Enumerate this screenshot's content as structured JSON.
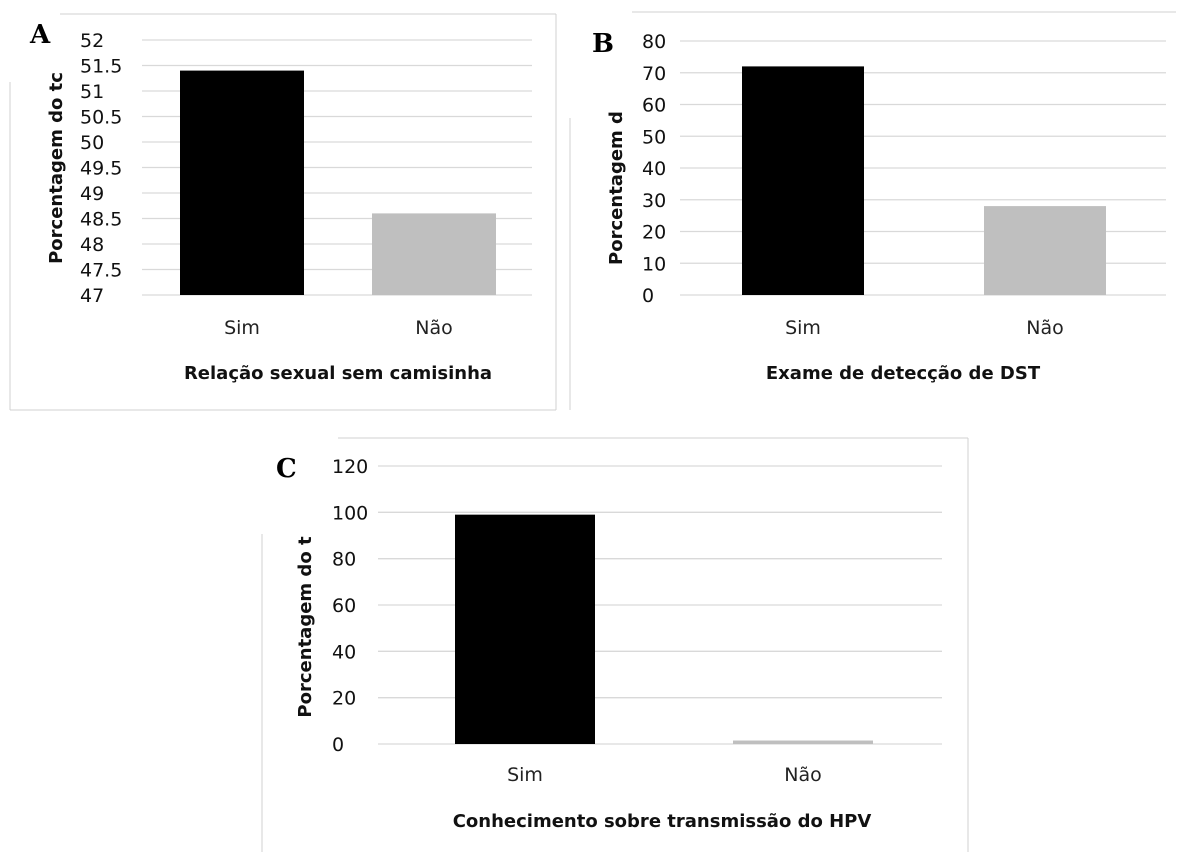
{
  "colors": {
    "sim": "#000000",
    "nao": "#bfbfbf",
    "grid": "#d9d9d9"
  },
  "chart_data": [
    {
      "panel_label": "A",
      "type": "bar",
      "categories": [
        "Sim",
        "Não"
      ],
      "values": [
        51.4,
        48.6
      ],
      "ylim": [
        47,
        52
      ],
      "yticks": [
        "47",
        "47.5",
        "48",
        "48.5",
        "49",
        "49.5",
        "50",
        "50.5",
        "51",
        "51.5",
        "52"
      ],
      "xlabel": "Relação sexual sem camisinha",
      "ylabel": "Porcentagem do tc",
      "grid": true
    },
    {
      "panel_label": "B",
      "type": "bar",
      "categories": [
        "Sim",
        "Não"
      ],
      "values": [
        72,
        28
      ],
      "ylim": [
        0,
        80
      ],
      "yticks": [
        "0",
        "10",
        "20",
        "30",
        "40",
        "50",
        "60",
        "70",
        "80"
      ],
      "xlabel": "Exame de detecção de DST",
      "ylabel": "Porcentagem d",
      "grid": true
    },
    {
      "panel_label": "C",
      "type": "bar",
      "categories": [
        "Sim",
        "Não"
      ],
      "values": [
        99,
        1.5
      ],
      "ylim": [
        0,
        120
      ],
      "yticks": [
        "0",
        "20",
        "40",
        "60",
        "80",
        "100",
        "120"
      ],
      "xlabel": "Conhecimento sobre transmissão do HPV",
      "ylabel": "Porcentagem do t",
      "grid": true
    }
  ]
}
